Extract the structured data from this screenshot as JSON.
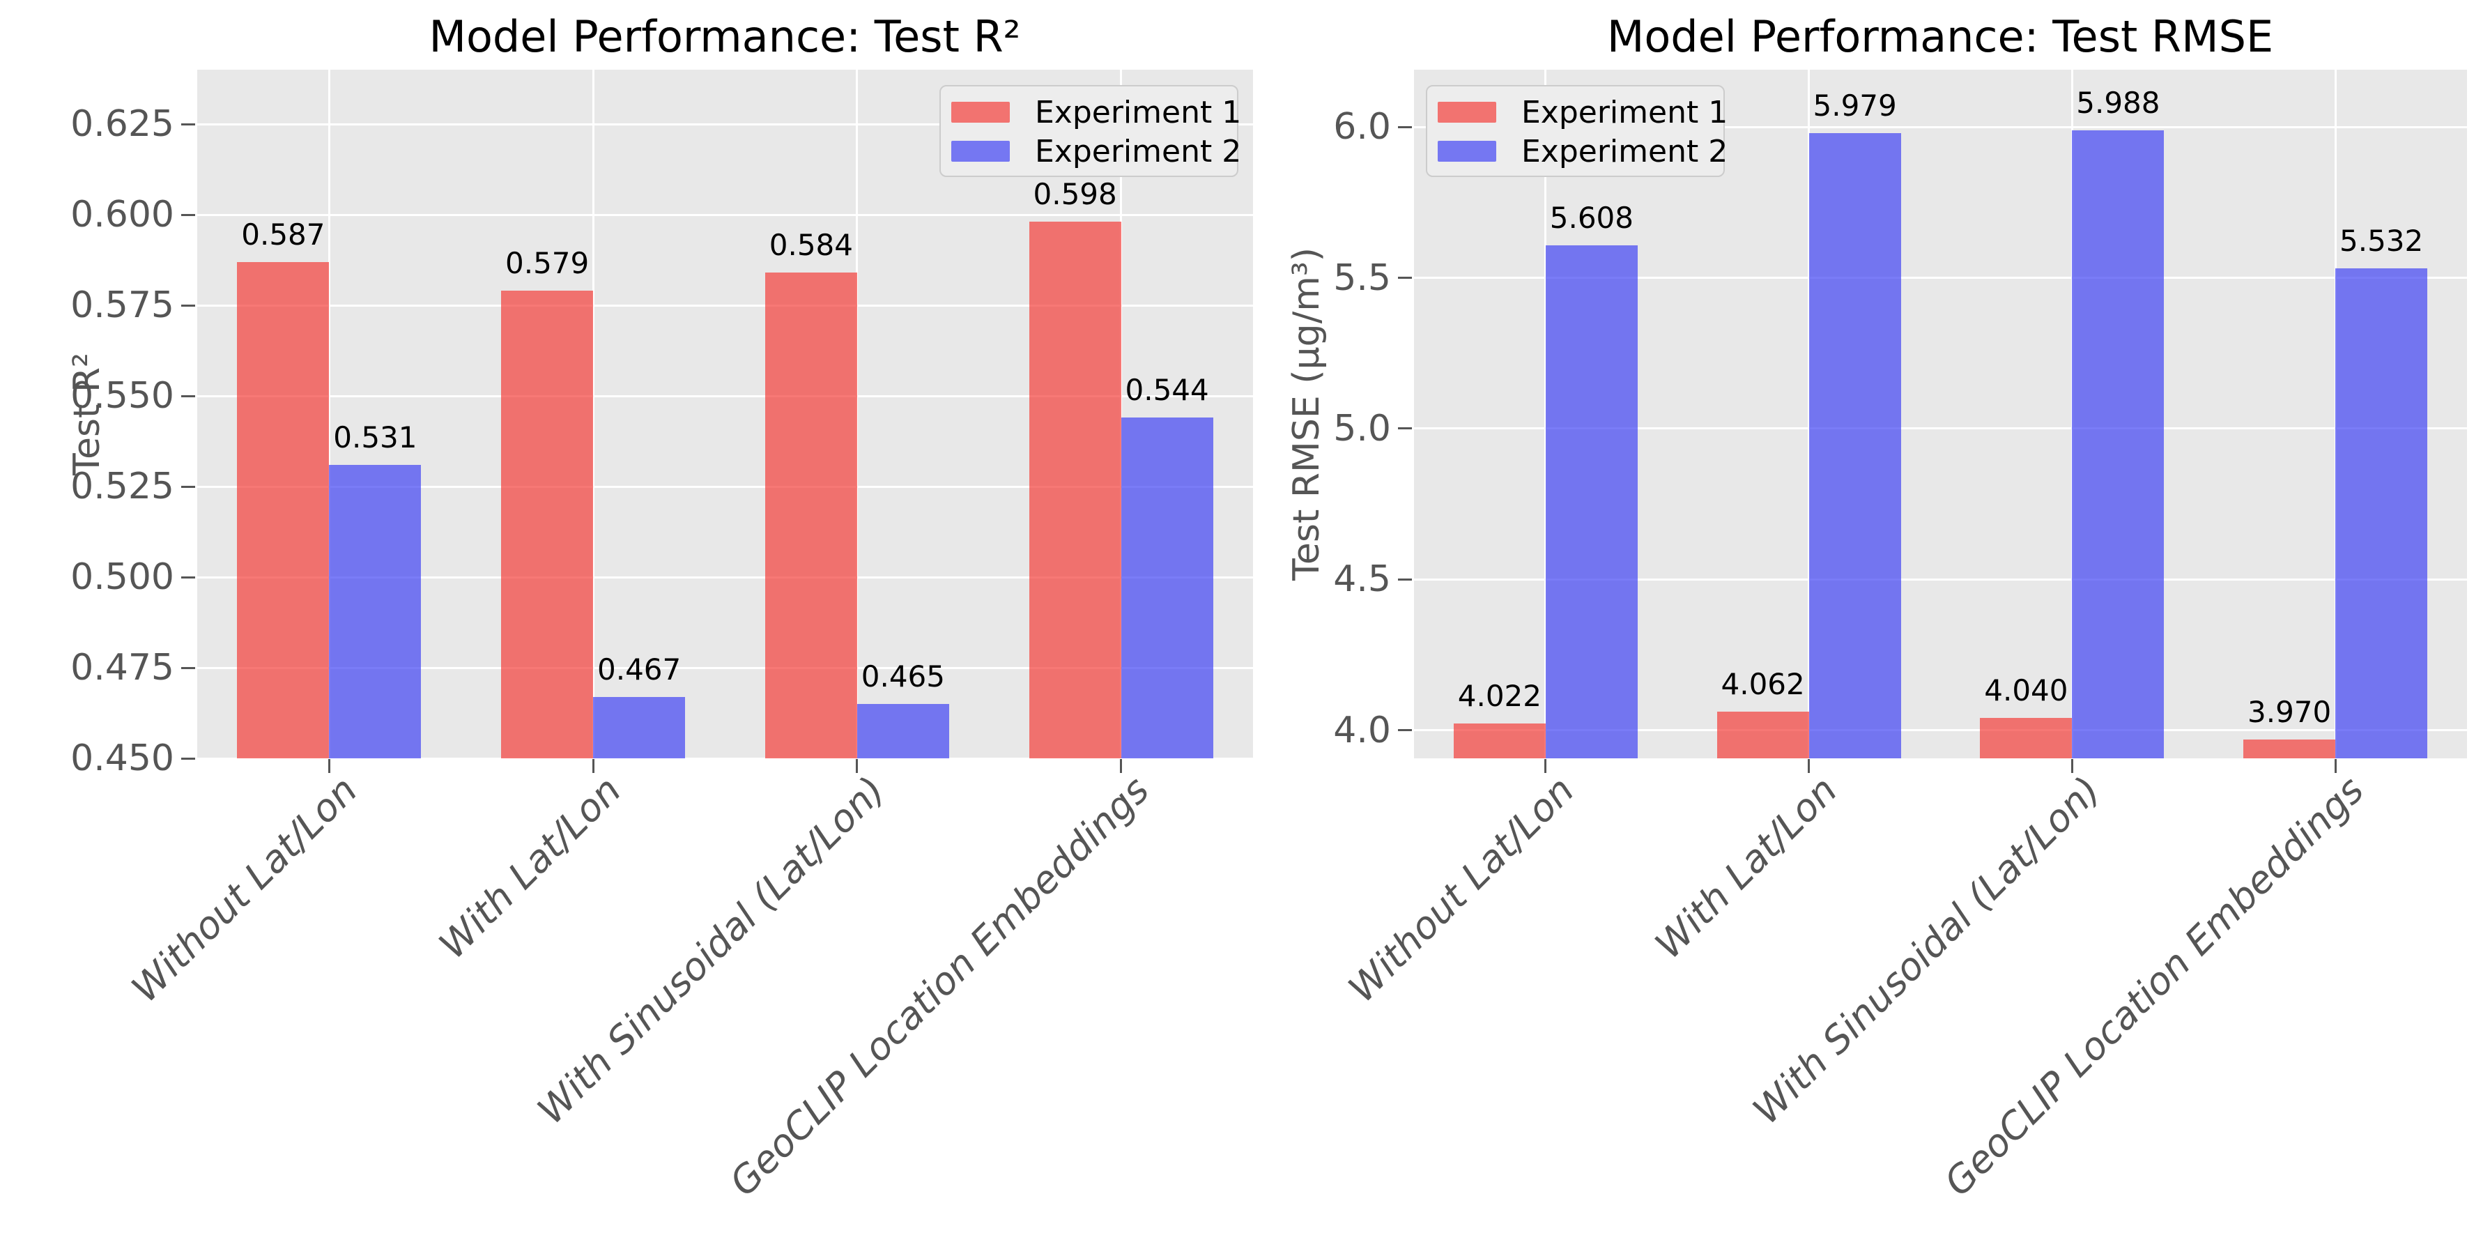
{
  "figure": {
    "background": "#ffffff",
    "plot_background": "#e8e8e8",
    "grid_color": "#ffffff",
    "tick_color": "#555555",
    "title_color": "#000000",
    "bar_label_color": "#000000",
    "experiment1_color": "rgba(243,62,58,0.7)",
    "experiment2_color": "rgba(66,69,243,0.7)"
  },
  "chart_data": [
    {
      "type": "bar",
      "title": "Model Performance: Test R²",
      "ylabel": "Test R²",
      "xlabel": "",
      "grid": true,
      "legend_position": "upper-right",
      "categories": [
        "Without Lat/Lon",
        "With Lat/Lon",
        "With Sinusoidal (Lat/Lon)",
        "GeoCLIP Location Embeddings"
      ],
      "series": [
        {
          "name": "Experiment 1",
          "color": "rgba(243,62,58,0.7)",
          "values": [
            0.587,
            0.579,
            0.584,
            0.598
          ],
          "labels": [
            "0.587",
            "0.579",
            "0.584",
            "0.598"
          ]
        },
        {
          "name": "Experiment 2",
          "color": "rgba(66,69,243,0.7)",
          "values": [
            0.531,
            0.467,
            0.465,
            0.544
          ],
          "labels": [
            "0.531",
            "0.467",
            "0.465",
            "0.544"
          ]
        }
      ],
      "ylim": [
        0.45,
        0.64
      ],
      "yticks": [
        {
          "value": 0.45,
          "label": "0.450"
        },
        {
          "value": 0.475,
          "label": "0.475"
        },
        {
          "value": 0.5,
          "label": "0.500"
        },
        {
          "value": 0.525,
          "label": "0.525"
        },
        {
          "value": 0.55,
          "label": "0.550"
        },
        {
          "value": 0.575,
          "label": "0.575"
        },
        {
          "value": 0.6,
          "label": "0.600"
        },
        {
          "value": 0.625,
          "label": "0.625"
        }
      ]
    },
    {
      "type": "bar",
      "title": "Model Performance: Test RMSE",
      "ylabel": "Test RMSE (μg/m³)",
      "xlabel": "",
      "grid": true,
      "legend_position": "upper-left",
      "categories": [
        "Without Lat/Lon",
        "With Lat/Lon",
        "With Sinusoidal (Lat/Lon)",
        "GeoCLIP Location Embeddings"
      ],
      "series": [
        {
          "name": "Experiment 1",
          "color": "rgba(243,62,58,0.7)",
          "values": [
            4.022,
            4.062,
            4.04,
            3.97
          ],
          "labels": [
            "4.022",
            "4.062",
            "4.040",
            "3.970"
          ]
        },
        {
          "name": "Experiment 2",
          "color": "rgba(66,69,243,0.7)",
          "values": [
            5.608,
            5.979,
            5.988,
            5.532
          ],
          "labels": [
            "5.608",
            "5.979",
            "5.988",
            "5.532"
          ]
        }
      ],
      "ylim": [
        3.907,
        6.19
      ],
      "yticks": [
        {
          "value": 4.0,
          "label": "4.0"
        },
        {
          "value": 4.5,
          "label": "4.5"
        },
        {
          "value": 5.0,
          "label": "5.0"
        },
        {
          "value": 5.5,
          "label": "5.5"
        },
        {
          "value": 6.0,
          "label": "6.0"
        }
      ]
    }
  ]
}
